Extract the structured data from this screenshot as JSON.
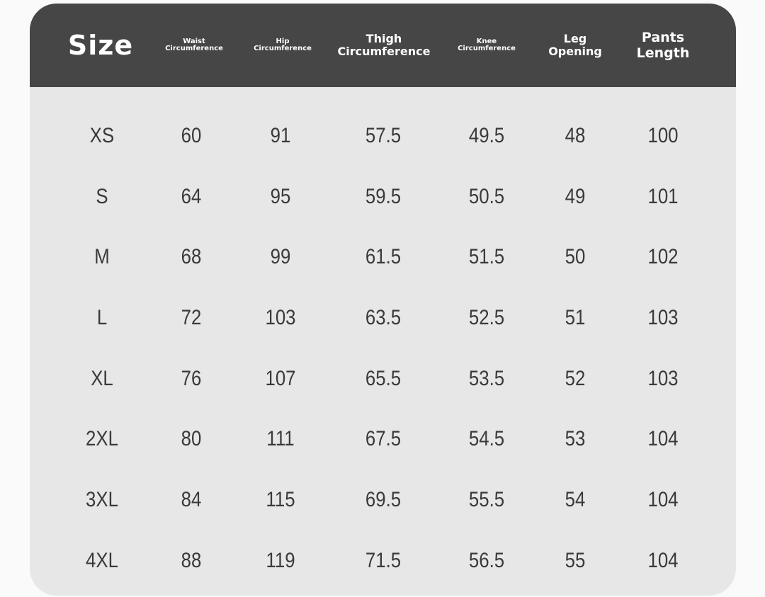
{
  "table": {
    "columns": [
      "Size",
      "Waist\nCircumference",
      "Hip\nCircumference",
      "Thigh\nCircumference",
      "Knee\nCircumference",
      "Leg\nOpening",
      "Pants\nLength"
    ],
    "rows": [
      [
        "XS",
        "60",
        "91",
        "57.5",
        "49.5",
        "48",
        "100"
      ],
      [
        "S",
        "64",
        "95",
        "59.5",
        "50.5",
        "49",
        "101"
      ],
      [
        "M",
        "68",
        "99",
        "61.5",
        "51.5",
        "50",
        "102"
      ],
      [
        "L",
        "72",
        "103",
        "63.5",
        "52.5",
        "51",
        "103"
      ],
      [
        "XL",
        "76",
        "107",
        "65.5",
        "53.5",
        "52",
        "103"
      ],
      [
        "2XL",
        "80",
        "111",
        "67.5",
        "54.5",
        "53",
        "104"
      ],
      [
        "3XL",
        "84",
        "115",
        "69.5",
        "55.5",
        "54",
        "104"
      ],
      [
        "4XL",
        "88",
        "119",
        "71.5",
        "56.5",
        "55",
        "104"
      ]
    ]
  },
  "colors": {
    "header_bg": "#464646",
    "header_text": "#ffffff",
    "card_bg": "#e7e7e7",
    "cell_text": "#3a3a3a"
  }
}
